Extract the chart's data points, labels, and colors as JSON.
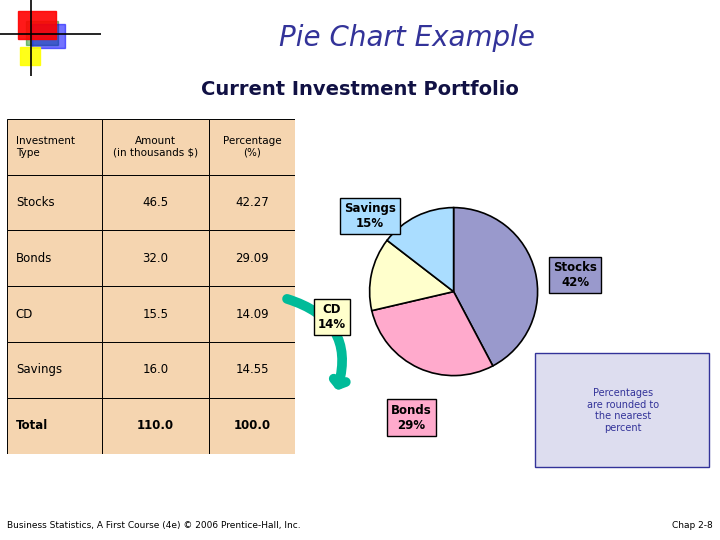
{
  "title": "Pie Chart Example",
  "subtitle": "Current Investment Portfolio",
  "table_headers": [
    "Investment\nType",
    "Amount\n(in thousands $)",
    "Percentage\n(%)"
  ],
  "table_rows": [
    [
      "Stocks",
      "46.5",
      "42.27"
    ],
    [
      "Bonds",
      "32.0",
      "29.09"
    ],
    [
      "CD",
      "15.5",
      "14.09"
    ],
    [
      "Savings",
      "16.0",
      "14.55"
    ],
    [
      "Total",
      "110.0",
      "100.0"
    ]
  ],
  "pie_labels": [
    "Stocks",
    "Bonds",
    "CD",
    "Savings"
  ],
  "pie_values": [
    42.27,
    29.09,
    14.09,
    14.55
  ],
  "pie_display_pcts": [
    "42%",
    "29%",
    "14%",
    "15%"
  ],
  "pie_colors": [
    "#9999cc",
    "#ffaacc",
    "#ffffcc",
    "#aaddff"
  ],
  "title_color": "#333399",
  "subtitle_color": "#111144",
  "table_bg": "#f5d5b0",
  "note_text": "Percentages\nare rounded to\nthe nearest\npercent",
  "note_box_color": "#ddddef",
  "footer_left": "Business Statistics, A First Course (4e) © 2006 Prentice-Hall, Inc.",
  "footer_right": "Chap 2-8",
  "background_color": "#ffffff",
  "arrow_color": "#00bb99"
}
